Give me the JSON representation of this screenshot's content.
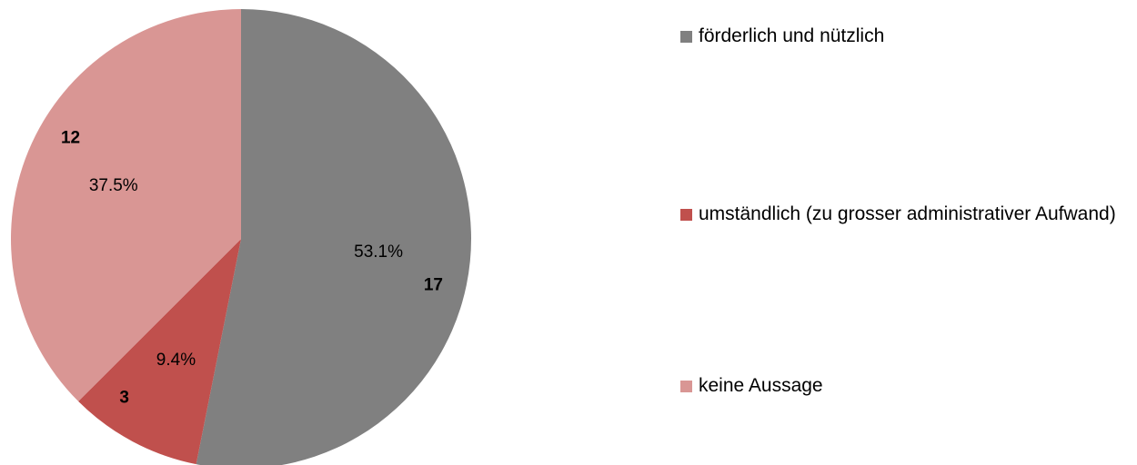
{
  "chart_data": {
    "type": "pie",
    "categories": [
      "förderlich und nützlich",
      "umständlich (zu grosser administrativer Aufwand)",
      "keine Aussage"
    ],
    "values": [
      17,
      3,
      12
    ],
    "percent_labels": [
      "53.1%",
      "9.4%",
      "37.5%"
    ],
    "colors": [
      "#808080",
      "#c0504d",
      "#d99694"
    ],
    "legend": "right"
  }
}
